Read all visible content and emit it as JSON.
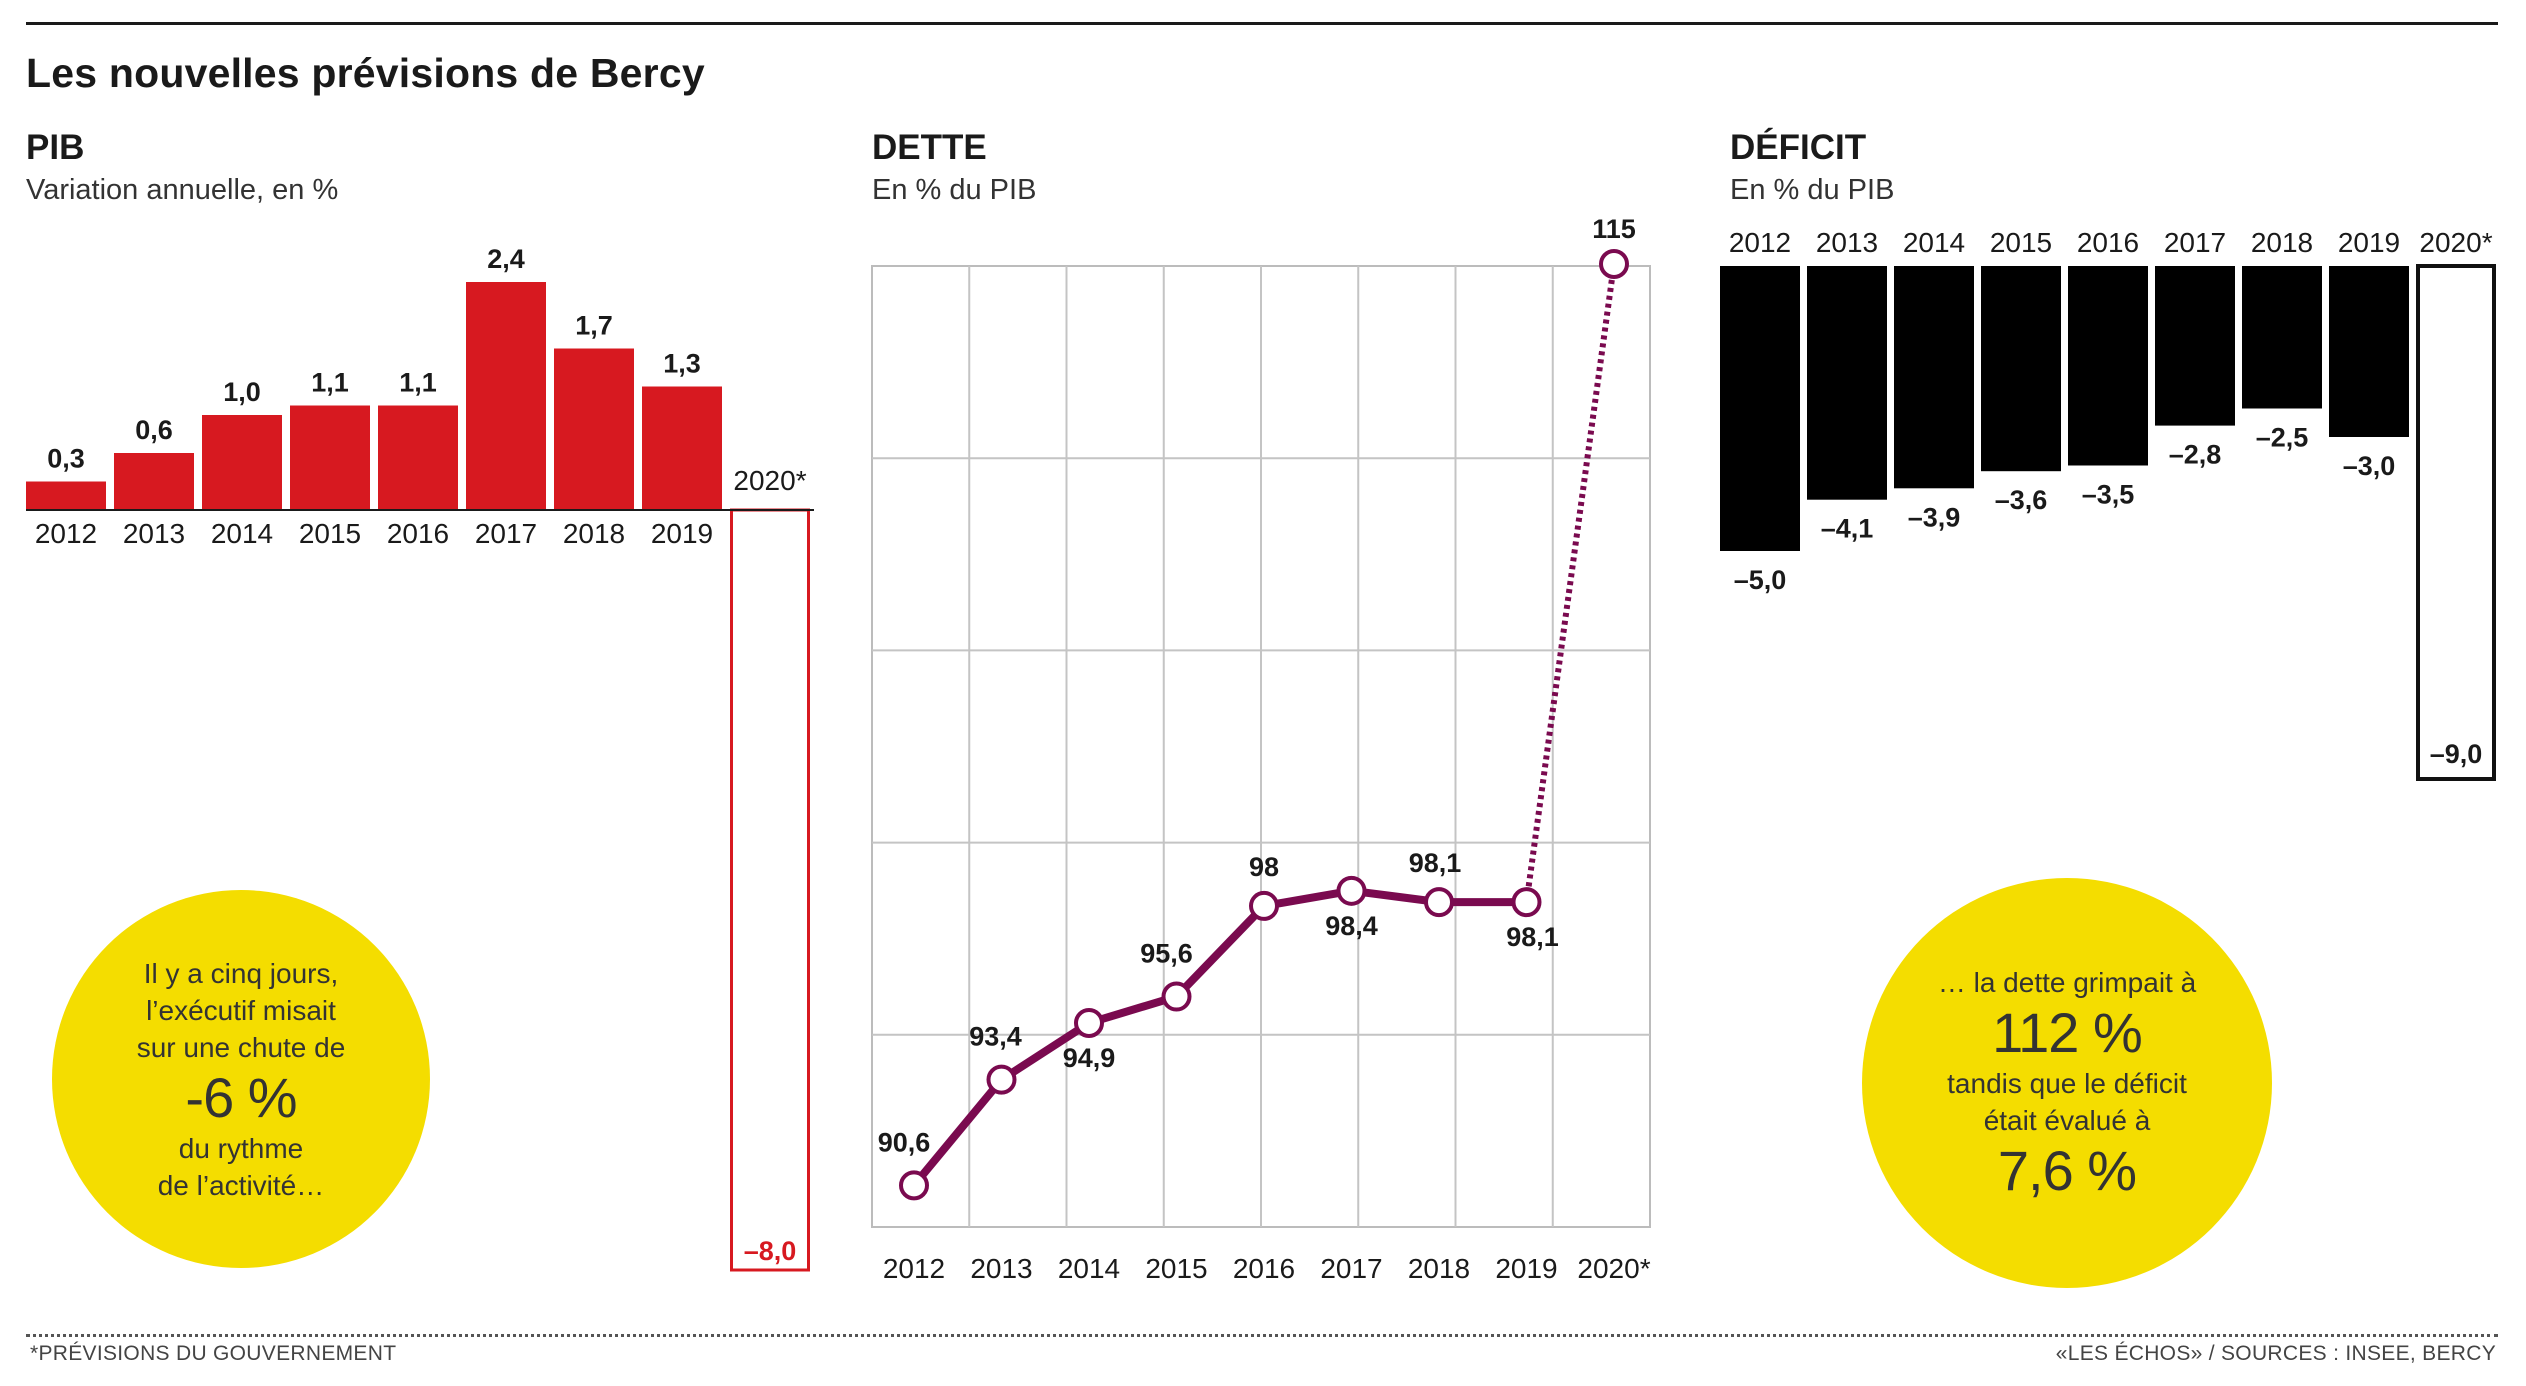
{
  "header": {
    "title": "Les nouvelles prévisions de Bercy"
  },
  "colors": {
    "pib": "#d71920",
    "dette": "#7a0a4f",
    "deficit": "#000000",
    "bubble": "#f4dd00"
  },
  "panels": {
    "pib": {
      "title": "PIB",
      "subtitle": "Variation annuelle, en %"
    },
    "dette": {
      "title": "DETTE",
      "subtitle": "En % du PIB"
    },
    "deficit": {
      "title": "DÉFICIT",
      "subtitle": "En % du PIB"
    }
  },
  "chart_data": [
    {
      "type": "bar",
      "title": "PIB",
      "subtitle": "Variation annuelle, en %",
      "categories": [
        "2012",
        "2013",
        "2014",
        "2015",
        "2016",
        "2017",
        "2018",
        "2019",
        "2020*"
      ],
      "values": [
        0.3,
        0.6,
        1.0,
        1.1,
        1.1,
        2.4,
        1.7,
        1.3,
        -8.0
      ],
      "labels": [
        "0,3",
        "0,6",
        "1,0",
        "1,1",
        "1,1",
        "2,4",
        "1,7",
        "1,3",
        "–8,0"
      ],
      "forecast_index": 8,
      "ylim": [
        -8,
        2.4
      ],
      "grid": false
    },
    {
      "type": "line",
      "title": "DETTE",
      "subtitle": "En % du PIB",
      "categories": [
        "2012",
        "2013",
        "2014",
        "2015",
        "2016",
        "2017",
        "2018",
        "2019",
        "2020*"
      ],
      "values": [
        90.6,
        93.4,
        94.9,
        95.6,
        98,
        98.4,
        98.1,
        98.1,
        115
      ],
      "labels": [
        "90,6",
        "93,4",
        "94,9",
        "95,6",
        "98",
        "98,4",
        "98,1",
        "98,1",
        "115"
      ],
      "forecast_index": 8,
      "ylim": [
        90,
        115
      ],
      "grid": true
    },
    {
      "type": "bar",
      "title": "DÉFICIT",
      "subtitle": "En % du PIB",
      "categories": [
        "2012",
        "2013",
        "2014",
        "2015",
        "2016",
        "2017",
        "2018",
        "2019",
        "2020*"
      ],
      "values": [
        -5.0,
        -4.1,
        -3.9,
        -3.6,
        -3.5,
        -2.8,
        -2.5,
        -3.0,
        -9.0
      ],
      "labels": [
        "–5,0",
        "–4,1",
        "–3,9",
        "–3,6",
        "–3,5",
        "–2,8",
        "–2,5",
        "–3,0",
        "–9,0"
      ],
      "forecast_index": 8,
      "ylim": [
        -9,
        0
      ],
      "grid": false
    }
  ],
  "bubbles": {
    "left": {
      "line1": "Il y a cinq jours,",
      "line2": "l’exécutif misait",
      "line3": "sur une chute de",
      "big": "-6 %",
      "line4": "du rythme",
      "line5": "de l’activité…"
    },
    "right": {
      "line1": "… la dette grimpait à",
      "big1": "112 %",
      "line2": "tandis que le déficit",
      "line3": "était évalué à",
      "big2": "7,6 %"
    }
  },
  "footer": {
    "note": "*PRÉVISIONS DU GOUVERNEMENT",
    "source": "«LES ÉCHOS» / SOURCES : INSEE, BERCY"
  }
}
